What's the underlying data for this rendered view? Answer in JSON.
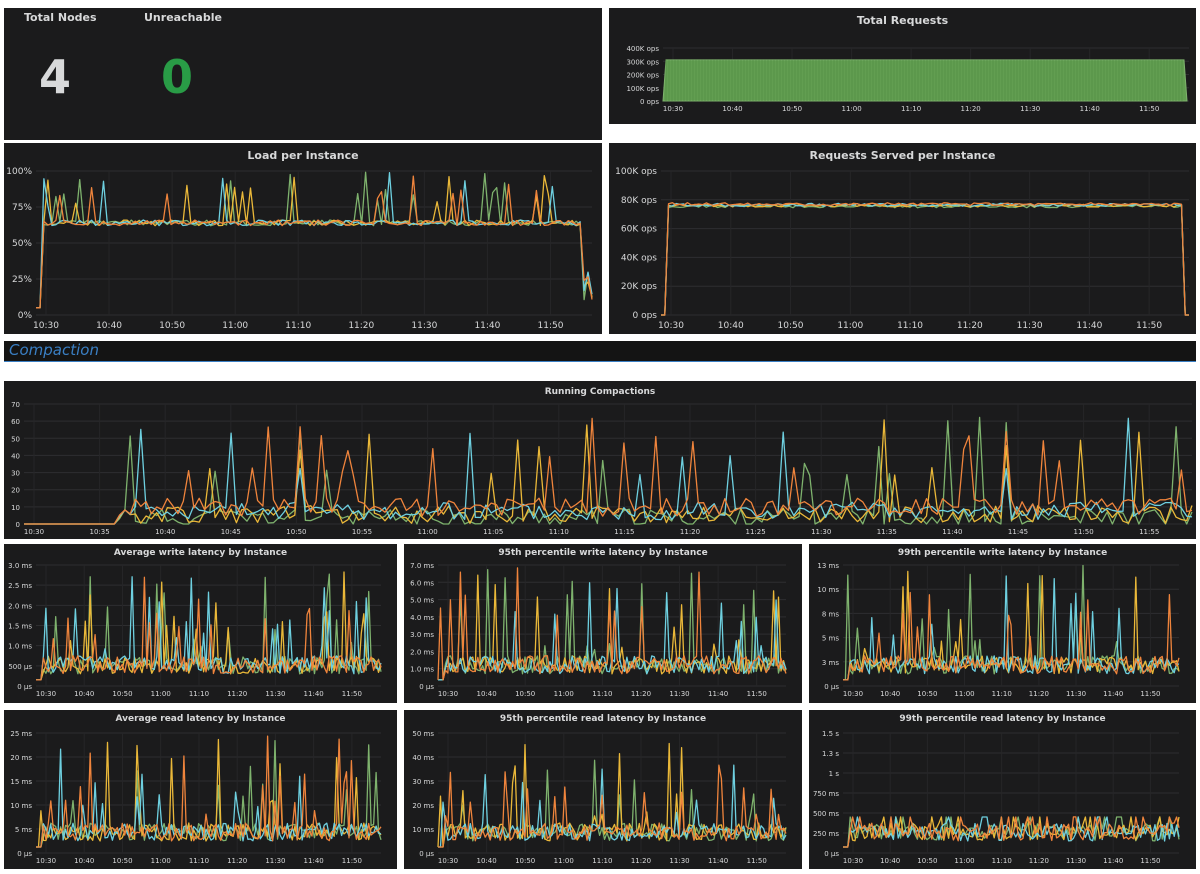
{
  "stats": {
    "total_nodes": {
      "label": "Total Nodes",
      "value": "4"
    },
    "unreachable": {
      "label": "Unreachable",
      "value": "0"
    }
  },
  "section": {
    "title": "Compaction"
  },
  "time_ticks": [
    "10:30",
    "10:40",
    "10:50",
    "11:00",
    "11:10",
    "11:20",
    "11:30",
    "11:40",
    "11:50"
  ],
  "compaction_ticks": [
    "10:30",
    "10:35",
    "10:40",
    "10:45",
    "10:50",
    "10:55",
    "11:00",
    "11:05",
    "11:10",
    "11:15",
    "11:20",
    "11:25",
    "11:30",
    "11:35",
    "11:40",
    "11:45",
    "11:50",
    "11:55"
  ],
  "colors": {
    "green": "#7eb26d",
    "yellow": "#eab839",
    "cyan": "#6ed0e0",
    "orange": "#ef843c",
    "value_white": "#d8d9da",
    "value_green": "#299c46"
  },
  "series_colors": [
    "#7eb26d",
    "#eab839",
    "#6ed0e0",
    "#ef843c"
  ],
  "chart_data": [
    {
      "id": "total_requests",
      "type": "area",
      "title": "Total Requests",
      "y_ticks": [
        "400K ops",
        "300K ops",
        "200K ops",
        "100K ops",
        "0 ops"
      ],
      "ylim": [
        0,
        400000
      ],
      "x": [
        "10:24",
        "10:27",
        "11:58",
        "11:59"
      ],
      "series": [
        {
          "values": [
            0,
            310000,
            310000,
            0
          ]
        }
      ]
    },
    {
      "id": "load",
      "type": "line",
      "title": "Load per Instance",
      "y_ticks": [
        "100%",
        "75%",
        "50%",
        "25%",
        "0%"
      ],
      "ylim": [
        0,
        100
      ],
      "x": [
        "10:24",
        "10:25",
        "11:57",
        "11:59"
      ],
      "series": [
        {
          "values": [
            5,
            62,
            68,
            84
          ]
        },
        {
          "values": [
            5,
            62,
            68,
            20
          ]
        },
        {
          "values": [
            5,
            62,
            66,
            15
          ]
        },
        {
          "values": [
            5,
            64,
            70,
            0
          ]
        }
      ]
    },
    {
      "id": "requests_served",
      "type": "line",
      "title": "Requests Served per Instance",
      "y_ticks": [
        "100K ops",
        "80K ops",
        "60K ops",
        "40K ops",
        "20K ops",
        "0 ops"
      ],
      "ylim": [
        0,
        100000
      ],
      "x": [
        "10:26",
        "10:27",
        "11:58",
        "11:59"
      ],
      "series": [
        {
          "values": [
            0,
            76000,
            76000,
            0
          ]
        },
        {
          "values": [
            0,
            77000,
            77000,
            0
          ]
        },
        {
          "values": [
            0,
            75000,
            75000,
            0
          ]
        },
        {
          "values": [
            0,
            78000,
            78000,
            0
          ]
        }
      ]
    },
    {
      "id": "running_compactions",
      "type": "line",
      "title": "Running Compactions",
      "y_ticks": [
        "70",
        "60",
        "50",
        "40",
        "30",
        "20",
        "10",
        "0"
      ],
      "ylim": [
        0,
        70
      ],
      "x": [
        "10:26",
        "10:35",
        "10:36",
        "10:37",
        "10:44",
        "10:45",
        "10:48",
        "11:00",
        "11:17",
        "11:37",
        "11:57",
        "11:58"
      ],
      "series": [
        {
          "values": [
            0,
            0,
            8,
            5,
            3,
            63,
            58,
            64,
            64,
            64,
            63,
            59
          ]
        },
        {
          "values": [
            0,
            0,
            20,
            18,
            6,
            42,
            40,
            30,
            40,
            45,
            18,
            17
          ]
        },
        {
          "values": [
            0,
            0,
            15,
            10,
            6,
            55,
            10,
            52,
            52,
            52,
            18,
            10
          ]
        },
        {
          "values": [
            0,
            0,
            55,
            20,
            17,
            18,
            15,
            10,
            10,
            10,
            20,
            12
          ]
        }
      ]
    },
    {
      "id": "avg_write",
      "type": "line",
      "title": "Average write latency by Instance",
      "y_ticks": [
        "3.0 ms",
        "2.5 ms",
        "2.0 ms",
        "1.5 ms",
        "1.0 ms",
        "500 µs",
        "0 µs"
      ],
      "ylim": [
        0,
        3000
      ],
      "series": [
        {
          "peak": 2.4
        },
        {
          "peak": 2.5
        },
        {
          "peak": 2.3
        },
        {
          "peak": 2.8
        }
      ]
    },
    {
      "id": "p95_write",
      "type": "line",
      "title": "95th percentile write latency by Instance",
      "y_ticks": [
        "7.0 ms",
        "6.0 ms",
        "5.0 ms",
        "4.0 ms",
        "3.0 ms",
        "2.0 ms",
        "1.0 ms",
        "0 µs"
      ],
      "ylim": [
        0,
        7000
      ],
      "series": [
        {
          "peak": 5.8
        },
        {
          "peak": 5.9
        },
        {
          "peak": 5.2
        },
        {
          "peak": 6.4
        }
      ]
    },
    {
      "id": "p99_write",
      "type": "line",
      "title": "99th percentile write latency by Instance",
      "y_ticks": [
        "13 ms",
        "10 ms",
        "8 ms",
        "5 ms",
        "3 ms",
        "0 µs"
      ],
      "ylim": [
        0,
        13000
      ],
      "series": [
        {
          "peak": 12
        },
        {
          "peak": 11
        },
        {
          "peak": 10
        },
        {
          "peak": 8.5
        }
      ]
    },
    {
      "id": "avg_read",
      "type": "line",
      "title": "Average read latency by Instance",
      "y_ticks": [
        "25 ms",
        "20 ms",
        "15 ms",
        "10 ms",
        "5 ms",
        "0 µs"
      ],
      "ylim": [
        0,
        25000
      ],
      "series": [
        {
          "peak": 22
        },
        {
          "peak": 21
        },
        {
          "peak": 19
        },
        {
          "peak": 23
        }
      ]
    },
    {
      "id": "p95_read",
      "type": "line",
      "title": "95th percentile read latency by Instance",
      "y_ticks": [
        "50 ms",
        "40 ms",
        "30 ms",
        "20 ms",
        "10 ms",
        "0 µs"
      ],
      "ylim": [
        0,
        50000
      ],
      "series": [
        {
          "peak": 30
        },
        {
          "peak": 44
        },
        {
          "peak": 28
        },
        {
          "peak": 30
        }
      ]
    },
    {
      "id": "p99_read",
      "type": "line",
      "title": "99th percentile read latency by Instance",
      "y_ticks": [
        "1.5 s",
        "1.3 s",
        "1 s",
        "750 ms",
        "500 ms",
        "250 ms",
        "0 µs"
      ],
      "ylim": [
        0,
        1500000
      ],
      "series": [
        {
          "peak": 0.6
        },
        {
          "peak": 1.2
        },
        {
          "peak": 0.7
        },
        {
          "peak": 1.3
        }
      ]
    }
  ]
}
